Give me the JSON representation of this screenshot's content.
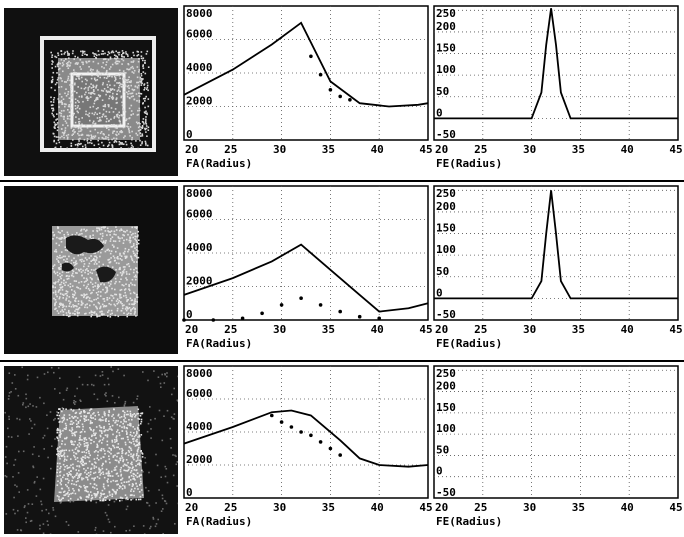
{
  "rows": [
    {
      "fa": {
        "type": "line",
        "xlabel": "FA(Radius)",
        "xticks": [
          "20",
          "25",
          "30",
          "35",
          "40",
          "45"
        ],
        "yticks": [
          "0",
          "2000",
          "4000",
          "6000",
          "8000"
        ],
        "xlim": [
          20,
          45
        ],
        "ylim": [
          0,
          8000
        ],
        "grid": true,
        "series": [
          {
            "style": "solid",
            "x": [
              20,
              25,
              29,
              32,
              35,
              38,
              41,
              44,
              45
            ],
            "y": [
              2700,
              4200,
              5700,
              7000,
              3500,
              2200,
              2000,
              2100,
              2200
            ]
          },
          {
            "style": "dotted",
            "x": [
              33,
              34,
              35,
              36,
              37
            ],
            "y": [
              5000,
              3900,
              3000,
              2600,
              2400
            ]
          }
        ]
      },
      "fe": {
        "type": "line",
        "xlabel": "FE(Radius)",
        "xticks": [
          "20",
          "25",
          "30",
          "35",
          "40",
          "45"
        ],
        "yticks": [
          "-50",
          "0",
          "50",
          "100",
          "150",
          "200",
          "250"
        ],
        "xlim": [
          20,
          45
        ],
        "ylim": [
          -50,
          260
        ],
        "grid": true,
        "series": [
          {
            "style": "solid",
            "x": [
              20,
              30,
              31,
              31.5,
              32,
              32.5,
              33,
              34,
              45
            ],
            "y": [
              0,
              0,
              60,
              170,
              255,
              170,
              60,
              0,
              0
            ]
          }
        ]
      },
      "image": {
        "kind": "square-with-frame"
      }
    },
    {
      "fa": {
        "type": "line",
        "xlabel": "FA(Radius)",
        "xticks": [
          "20",
          "25",
          "30",
          "35",
          "40",
          "45"
        ],
        "yticks": [
          "0",
          "2000",
          "4000",
          "6000",
          "8000"
        ],
        "xlim": [
          20,
          45
        ],
        "ylim": [
          0,
          8000
        ],
        "grid": true,
        "series": [
          {
            "style": "solid",
            "x": [
              20,
              25,
              29,
              32,
              35,
              38,
              40,
              43,
              45
            ],
            "y": [
              1500,
              2500,
              3500,
              4500,
              3000,
              1500,
              500,
              700,
              1000
            ]
          },
          {
            "style": "dotted",
            "x": [
              20,
              23,
              26,
              28,
              30,
              32,
              34,
              36,
              38,
              40
            ],
            "y": [
              0,
              0,
              100,
              400,
              900,
              1300,
              900,
              500,
              200,
              100
            ]
          }
        ]
      },
      "fe": {
        "type": "line",
        "xlabel": "FE(Radius)",
        "xticks": [
          "20",
          "25",
          "30",
          "35",
          "40",
          "45"
        ],
        "yticks": [
          "-50",
          "0",
          "50",
          "100",
          "150",
          "200",
          "250"
        ],
        "xlim": [
          20,
          45
        ],
        "ylim": [
          -50,
          260
        ],
        "grid": true,
        "series": [
          {
            "style": "solid",
            "x": [
              20,
              30,
              31,
              31.5,
              32,
              32.5,
              33,
              34,
              45
            ],
            "y": [
              0,
              0,
              40,
              150,
              250,
              150,
              40,
              0,
              0
            ]
          }
        ]
      },
      "image": {
        "kind": "square-with-holes"
      }
    },
    {
      "fa": {
        "type": "line",
        "xlabel": "FA(Radius)",
        "xticks": [
          "20",
          "25",
          "30",
          "35",
          "40",
          "45"
        ],
        "yticks": [
          "0",
          "2000",
          "4000",
          "6000",
          "8000"
        ],
        "xlim": [
          20,
          45
        ],
        "ylim": [
          0,
          8000
        ],
        "grid": true,
        "series": [
          {
            "style": "solid",
            "x": [
              20,
              25,
              29,
              31,
              33,
              36,
              38,
              40,
              43,
              45
            ],
            "y": [
              3300,
              4300,
              5200,
              5300,
              5000,
              3500,
              2400,
              2000,
              1900,
              2000
            ]
          },
          {
            "style": "dotted",
            "x": [
              29,
              30,
              31,
              32,
              33,
              34,
              35,
              36
            ],
            "y": [
              5000,
              4600,
              4300,
              4000,
              3800,
              3400,
              3000,
              2600
            ]
          }
        ]
      },
      "fe": {
        "type": "line",
        "xlabel": "FE(Radius)",
        "xticks": [
          "20",
          "25",
          "30",
          "35",
          "40",
          "45"
        ],
        "yticks": [
          "-50",
          "0",
          "50",
          "100",
          "150",
          "200",
          "250"
        ],
        "xlim": [
          20,
          45
        ],
        "ylim": [
          -50,
          260
        ],
        "grid": true,
        "series": []
      },
      "image": {
        "kind": "noisy-square"
      }
    }
  ]
}
